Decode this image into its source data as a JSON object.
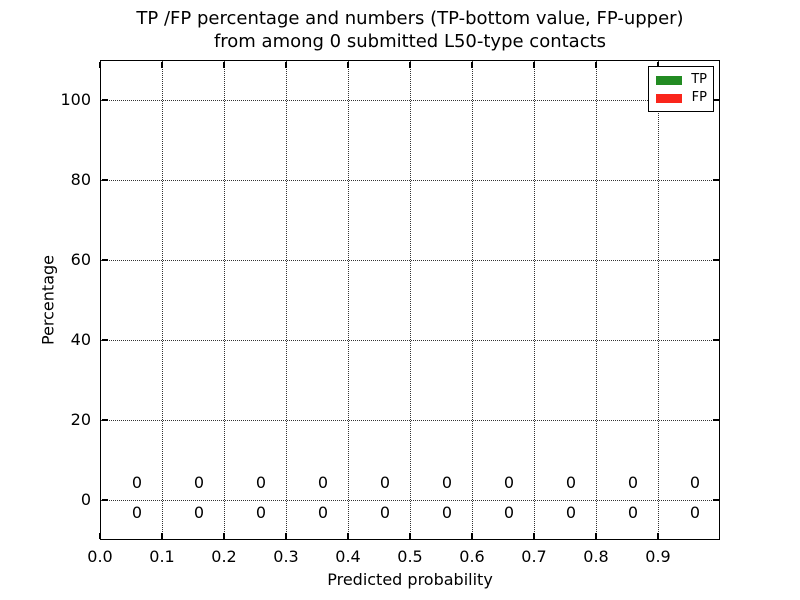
{
  "title": {
    "line1": "TP /FP percentage and numbers (TP-bottom value, FP-upper)",
    "line2": "from among 0 submitted L50-type contacts"
  },
  "axes": {
    "xlabel": "Predicted probability",
    "ylabel": "Percentage",
    "x_ticks": [
      {
        "value": 0.0,
        "label": "0.0"
      },
      {
        "value": 0.1,
        "label": "0.1"
      },
      {
        "value": 0.2,
        "label": "0.2"
      },
      {
        "value": 0.3,
        "label": "0.3"
      },
      {
        "value": 0.4,
        "label": "0.4"
      },
      {
        "value": 0.5,
        "label": "0.5"
      },
      {
        "value": 0.6,
        "label": "0.6"
      },
      {
        "value": 0.7,
        "label": "0.7"
      },
      {
        "value": 0.8,
        "label": "0.8"
      },
      {
        "value": 0.9,
        "label": "0.9"
      }
    ],
    "y_ticks": [
      {
        "value": 0,
        "label": "0"
      },
      {
        "value": 20,
        "label": "20"
      },
      {
        "value": 40,
        "label": "40"
      },
      {
        "value": 60,
        "label": "60"
      },
      {
        "value": 80,
        "label": "80"
      },
      {
        "value": 100,
        "label": "100"
      }
    ]
  },
  "legend": {
    "items": [
      {
        "label": "TP",
        "color": "#228b22"
      },
      {
        "label": "FP",
        "color": "#fa251b"
      }
    ]
  },
  "chart_data": {
    "type": "bar",
    "title": "TP /FP percentage and numbers (TP-bottom value, FP-upper) from among 0 submitted L50-type contacts",
    "xlabel": "Predicted probability",
    "ylabel": "Percentage",
    "xlim": [
      0.0,
      1.0
    ],
    "ylim": [
      -10,
      110
    ],
    "grid": true,
    "legend_position": "upper right",
    "bin_centers": [
      0.05,
      0.15,
      0.25,
      0.35,
      0.45,
      0.55,
      0.65,
      0.75,
      0.85,
      0.95
    ],
    "series": [
      {
        "name": "TP",
        "color": "#228b22",
        "values": [
          0,
          0,
          0,
          0,
          0,
          0,
          0,
          0,
          0,
          0
        ]
      },
      {
        "name": "FP",
        "color": "#fa251b",
        "values": [
          0,
          0,
          0,
          0,
          0,
          0,
          0,
          0,
          0,
          0
        ]
      }
    ],
    "annotations": {
      "upper_fp_labels": [
        "0",
        "0",
        "0",
        "0",
        "0",
        "0",
        "0",
        "0",
        "0",
        "0"
      ],
      "lower_tp_labels": [
        "0",
        "0",
        "0",
        "0",
        "0",
        "0",
        "0",
        "0",
        "0",
        "0"
      ]
    }
  }
}
